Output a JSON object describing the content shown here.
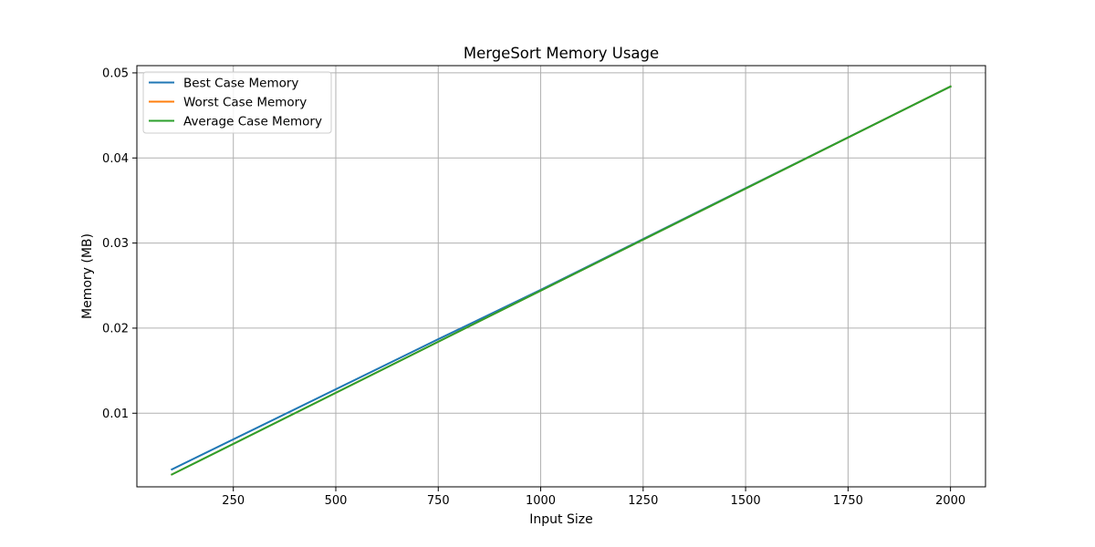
{
  "chart_data": {
    "type": "line",
    "title": "MergeSort Memory Usage",
    "xlabel": "Input Size",
    "ylabel": "Memory (MB)",
    "xlim": [
      14.6,
      2085.4
    ],
    "ylim": [
      0.00135,
      0.05085
    ],
    "xticks": [
      250,
      500,
      750,
      1000,
      1250,
      1500,
      1750,
      2000
    ],
    "xtick_labels": [
      "250",
      "500",
      "750",
      "1000",
      "1250",
      "1500",
      "1750",
      "2000"
    ],
    "yticks": [
      0.01,
      0.02,
      0.03,
      0.04,
      0.05
    ],
    "ytick_labels": [
      "0.01",
      "0.02",
      "0.03",
      "0.04",
      "0.05"
    ],
    "grid": true,
    "legend_position": "top-left",
    "x": [
      100,
      2000
    ],
    "series": [
      {
        "name": "Best Case Memory",
        "color": "#1f77b4",
        "x": [
          100,
          750,
          1000,
          2000
        ],
        "values": [
          0.0034,
          0.0187,
          0.0245,
          0.0484
        ]
      },
      {
        "name": "Worst Case Memory",
        "color": "#ff7f0e",
        "x": [
          100,
          750,
          1000,
          2000
        ],
        "values": [
          0.0028,
          0.0184,
          0.0244,
          0.0484
        ]
      },
      {
        "name": "Average Case Memory",
        "color": "#2ca02c",
        "x": [
          100,
          750,
          1000,
          2000
        ],
        "values": [
          0.0028,
          0.0184,
          0.0244,
          0.0484
        ]
      }
    ]
  }
}
